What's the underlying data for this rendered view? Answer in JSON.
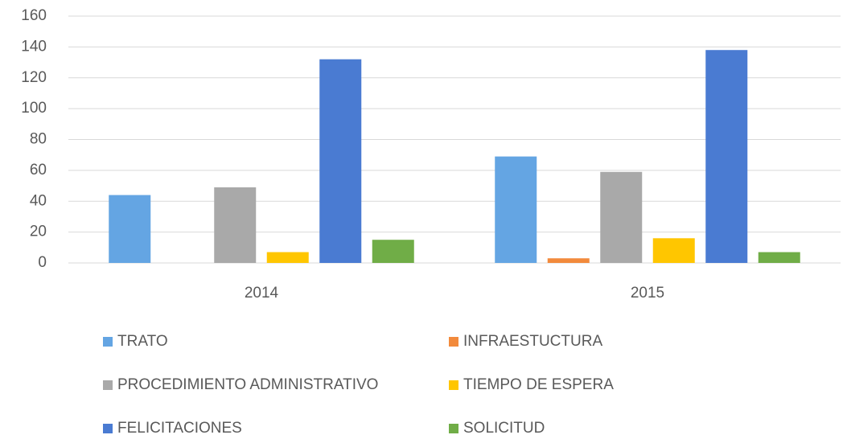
{
  "chart_data": {
    "type": "bar",
    "categories": [
      "2014",
      "2015"
    ],
    "series": [
      {
        "name": "TRATO",
        "color": "#64a5e3",
        "values": [
          44,
          69
        ]
      },
      {
        "name": "INFRAESTUCTURA",
        "color": "#f28a3c",
        "values": [
          0,
          3
        ]
      },
      {
        "name": "PROCEDIMIENTO ADMINISTRATIVO",
        "color": "#a9a9a9",
        "values": [
          49,
          59
        ]
      },
      {
        "name": "TIEMPO DE ESPERA",
        "color": "#ffc600",
        "values": [
          7,
          16
        ]
      },
      {
        "name": "FELICITACIONES",
        "color": "#4a7bd2",
        "values": [
          132,
          138
        ]
      },
      {
        "name": "SOLICITUD",
        "color": "#70ad47",
        "values": [
          15,
          7
        ]
      }
    ],
    "ylim": [
      0,
      160
    ],
    "yticks": [
      0,
      20,
      40,
      60,
      80,
      100,
      120,
      140,
      160
    ],
    "grid": true
  }
}
